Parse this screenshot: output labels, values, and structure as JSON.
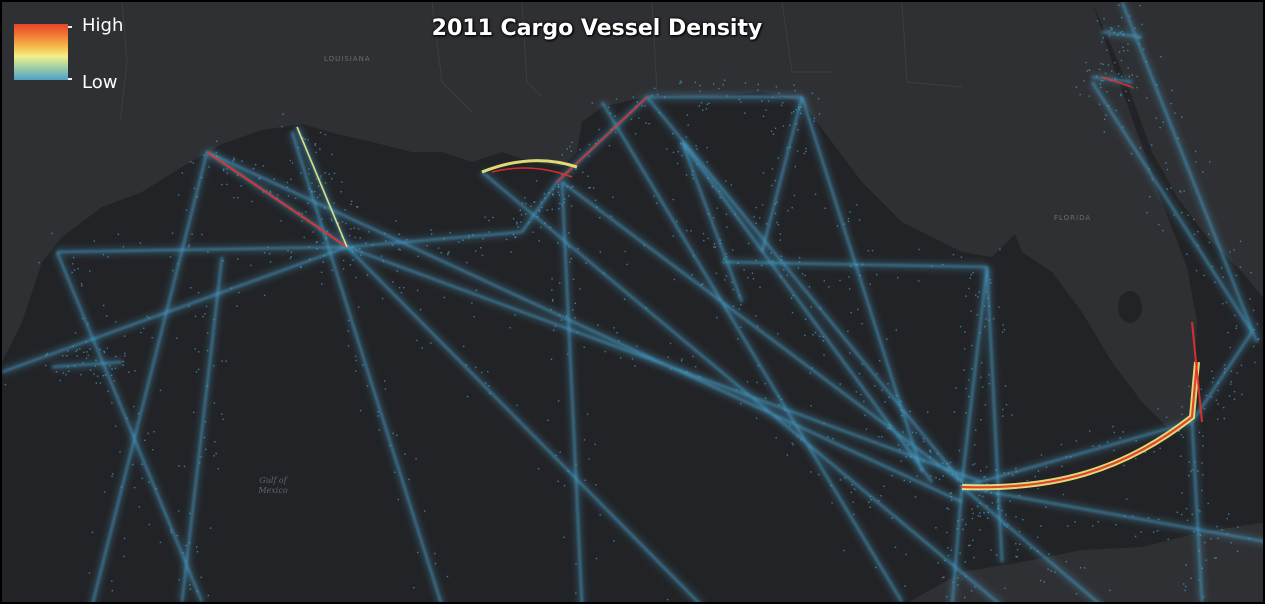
{
  "map": {
    "title": "2011 Cargo Vessel Density",
    "legend": {
      "high_label": "High",
      "low_label": "Low",
      "colors": [
        "#e8432a",
        "#f07a36",
        "#f6c04e",
        "#f2ef8a",
        "#9ccfa8",
        "#4f9fc8"
      ]
    },
    "place_labels": {
      "louisiana": "LOUISIANA",
      "florida": "FLORIDA"
    },
    "water_label": {
      "line1": "Gulf of",
      "line2": "Mexico"
    },
    "colors": {
      "land": "#2e2f32",
      "water": "#222326",
      "low": "#4aa3cf",
      "mid": "#f2ee7c",
      "high": "#e8302a"
    }
  }
}
